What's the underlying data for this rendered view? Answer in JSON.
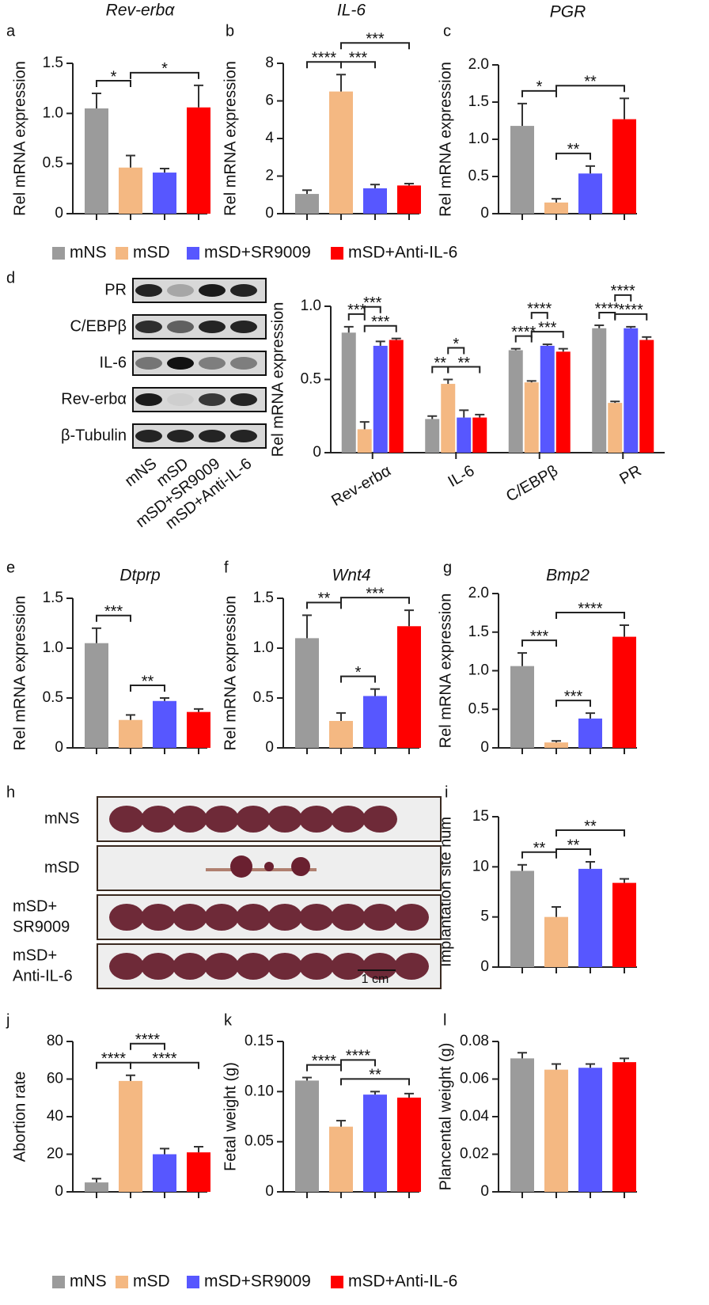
{
  "legend": [
    {
      "name": "mNS",
      "color": "#9b9b9b"
    },
    {
      "name": "mSD",
      "color": "#f4b882"
    },
    {
      "name": "mSD+SR9009",
      "color": "#5757ff"
    },
    {
      "name": "mSD+Anti-IL-6",
      "color": "#ff0000"
    }
  ],
  "blot": {
    "panel": "d",
    "rows": [
      "PR",
      "C/EBPβ",
      "IL-6",
      "Rev-erbα",
      "β-Tubulin"
    ],
    "lanes": [
      "mNS",
      "mSD",
      "mSD+SR9009",
      "mSD+Anti-IL-6"
    ]
  },
  "photos": {
    "panel": "h",
    "rows": [
      [
        "mNS"
      ],
      [
        "mSD"
      ],
      [
        "mSD+",
        "SR9009"
      ],
      [
        "mSD+",
        "Anti-IL-6"
      ]
    ],
    "scale_label": "1 cm"
  },
  "chart_data": [
    {
      "type": "bar",
      "panel": "a",
      "title": "Rev-erbα",
      "ylabel": "Rel mRNA expression",
      "ylim": [
        0,
        1.5
      ],
      "yticks": [
        0,
        0.5,
        {
          "value": 1,
          "label": "1.0"
        },
        1.5
      ],
      "values": [
        1.05,
        0.46,
        0.41,
        1.06
      ],
      "errors": [
        0.15,
        0.12,
        0.04,
        0.22
      ],
      "annotations": [
        {
          "from": 0,
          "to": 1,
          "label": "*"
        },
        {
          "from": 1,
          "to": 3,
          "label": "*"
        }
      ]
    },
    {
      "type": "bar",
      "panel": "b",
      "title": "IL-6",
      "ylabel": "Rel mRNA expression",
      "ylim": [
        0,
        8
      ],
      "yticks": [
        0,
        2,
        4,
        6,
        8
      ],
      "values": [
        1.05,
        6.5,
        1.35,
        1.5
      ],
      "errors": [
        0.2,
        0.9,
        0.2,
        0.1
      ],
      "annotations": [
        {
          "from": 0,
          "to": 1,
          "label": "****"
        },
        {
          "from": 1,
          "to": 2,
          "label": "***"
        },
        {
          "from": 1,
          "to": 3,
          "label": "***"
        }
      ]
    },
    {
      "type": "bar",
      "panel": "c",
      "title": "PGR",
      "ylabel": "Rel mRNA expression",
      "ylim": [
        0,
        2
      ],
      "yticks": [
        0,
        0.5,
        {
          "value": 1,
          "label": "1.0"
        },
        1.5,
        {
          "value": 2,
          "label": "2.0"
        }
      ],
      "values": [
        1.18,
        0.15,
        0.54,
        1.27
      ],
      "errors": [
        0.3,
        0.05,
        0.1,
        0.28
      ],
      "annotations": [
        {
          "from": 0,
          "to": 1,
          "label": "*"
        },
        {
          "from": 1,
          "to": 2,
          "label": "**"
        },
        {
          "from": 1,
          "to": 3,
          "label": "**"
        }
      ]
    },
    {
      "type": "grouped_bar",
      "ylabel": "Rel mRNA expression",
      "ylim": [
        0,
        1
      ],
      "yticks": [
        0,
        0.5,
        {
          "value": 1,
          "label": "1.0"
        }
      ],
      "categories": [
        "Rev-erbα",
        "IL-6",
        "C/EBPβ",
        "PR"
      ],
      "series": [
        {
          "values": [
            0.82,
            0.23,
            0.7,
            0.85
          ],
          "errors": [
            0.04,
            0.02,
            0.01,
            0.02
          ]
        },
        {
          "values": [
            0.16,
            0.47,
            0.48,
            0.34
          ],
          "errors": [
            0.05,
            0.03,
            0.01,
            0.01
          ]
        },
        {
          "values": [
            0.73,
            0.24,
            0.73,
            0.85
          ],
          "errors": [
            0.03,
            0.05,
            0.01,
            0.01
          ]
        },
        {
          "values": [
            0.77,
            0.24,
            0.69,
            0.77
          ],
          "errors": [
            0.01,
            0.02,
            0.02,
            0.02
          ]
        }
      ],
      "annotations": [
        {
          "category": 0,
          "from": 0,
          "to": 1,
          "label": "***"
        },
        {
          "category": 0,
          "from": 1,
          "to": 3,
          "label": "***"
        },
        {
          "category": 0,
          "from": 1,
          "to": 2,
          "label": "***"
        },
        {
          "category": 1,
          "from": 0,
          "to": 1,
          "label": "**"
        },
        {
          "category": 1,
          "from": 1,
          "to": 3,
          "label": "**"
        },
        {
          "category": 1,
          "from": 1,
          "to": 2,
          "label": "*"
        },
        {
          "category": 2,
          "from": 0,
          "to": 1,
          "label": "****"
        },
        {
          "category": 2,
          "from": 1,
          "to": 3,
          "label": "***"
        },
        {
          "category": 2,
          "from": 1,
          "to": 2,
          "label": "****"
        },
        {
          "category": 3,
          "from": 0,
          "to": 1,
          "label": "****"
        },
        {
          "category": 3,
          "from": 1,
          "to": 3,
          "label": "****"
        },
        {
          "category": 3,
          "from": 1,
          "to": 2,
          "label": "****"
        }
      ]
    },
    {
      "type": "bar",
      "panel": "e",
      "title": "Dtprp",
      "ylabel": "Rel mRNA expression",
      "ylim": [
        0,
        1.5
      ],
      "yticks": [
        0,
        0.5,
        {
          "value": 1,
          "label": "1.0"
        },
        1.5
      ],
      "values": [
        1.05,
        0.28,
        0.47,
        0.36
      ],
      "errors": [
        0.15,
        0.05,
        0.03,
        0.03
      ],
      "annotations": [
        {
          "from": 0,
          "to": 1,
          "label": "***"
        },
        {
          "from": 1,
          "to": 2,
          "label": "**"
        }
      ]
    },
    {
      "type": "bar",
      "panel": "f",
      "title": "Wnt4",
      "ylabel": "Rel mRNA expression",
      "ylim": [
        0,
        1.5
      ],
      "yticks": [
        0,
        0.5,
        {
          "value": 1,
          "label": "1.0"
        },
        1.5
      ],
      "values": [
        1.1,
        0.27,
        0.52,
        1.22
      ],
      "errors": [
        0.23,
        0.08,
        0.07,
        0.16
      ],
      "annotations": [
        {
          "from": 0,
          "to": 1,
          "label": "**"
        },
        {
          "from": 1,
          "to": 2,
          "label": "*"
        },
        {
          "from": 1,
          "to": 3,
          "label": "***"
        }
      ]
    },
    {
      "type": "bar",
      "panel": "g",
      "title": "Bmp2",
      "ylabel": "Rel mRNA expression",
      "ylim": [
        0,
        2
      ],
      "yticks": [
        0,
        0.5,
        {
          "value": 1,
          "label": "1.0"
        },
        1.5,
        {
          "value": 2,
          "label": "2.0"
        }
      ],
      "values": [
        1.06,
        0.07,
        0.38,
        1.44
      ],
      "errors": [
        0.17,
        0.02,
        0.07,
        0.15
      ],
      "annotations": [
        {
          "from": 0,
          "to": 1,
          "label": "***"
        },
        {
          "from": 1,
          "to": 2,
          "label": "***"
        },
        {
          "from": 1,
          "to": 3,
          "label": "****"
        }
      ]
    },
    {
      "type": "bar",
      "panel": "i",
      "ylabel": "Implantation site num",
      "ylim": [
        0,
        15
      ],
      "yticks": [
        0,
        5,
        10,
        15
      ],
      "values": [
        9.6,
        5,
        9.8,
        8.4
      ],
      "errors": [
        0.6,
        1,
        0.7,
        0.4
      ],
      "annotations": [
        {
          "from": 0,
          "to": 1,
          "label": "**"
        },
        {
          "from": 1,
          "to": 2,
          "label": "**"
        },
        {
          "from": 1,
          "to": 3,
          "label": "**"
        }
      ]
    },
    {
      "type": "bar",
      "panel": "j",
      "ylabel": "Abortion rate",
      "ylim": [
        0,
        80
      ],
      "yticks": [
        0,
        20,
        40,
        60,
        80
      ],
      "values": [
        5,
        59,
        20,
        21
      ],
      "errors": [
        2,
        3,
        3,
        3
      ],
      "annotations": [
        {
          "from": 0,
          "to": 1,
          "label": "****"
        },
        {
          "from": 1,
          "to": 3,
          "label": "****"
        },
        {
          "from": 1,
          "to": 2,
          "label": "****"
        }
      ]
    },
    {
      "type": "bar",
      "panel": "k",
      "ylabel": "Fetal weight (g)",
      "ylim": [
        0,
        0.15
      ],
      "yticks": [
        0,
        0.05,
        {
          "value": 0.1,
          "label": "0.10"
        },
        0.15
      ],
      "values": [
        0.111,
        0.065,
        0.097,
        0.094
      ],
      "errors": [
        0.003,
        0.006,
        0.003,
        0.004
      ],
      "annotations": [
        {
          "from": 0,
          "to": 1,
          "label": "****"
        },
        {
          "from": 1,
          "to": 3,
          "label": "**"
        },
        {
          "from": 1,
          "to": 2,
          "label": "****"
        }
      ]
    },
    {
      "type": "bar",
      "panel": "l",
      "ylabel": "Plancental weight (g)",
      "ylim": [
        0,
        0.08
      ],
      "yticks": [
        0,
        0.02,
        0.04,
        0.06,
        0.08
      ],
      "values": [
        0.071,
        0.065,
        0.066,
        0.069
      ],
      "errors": [
        0.003,
        0.003,
        0.002,
        0.002
      ],
      "annotations": []
    }
  ]
}
